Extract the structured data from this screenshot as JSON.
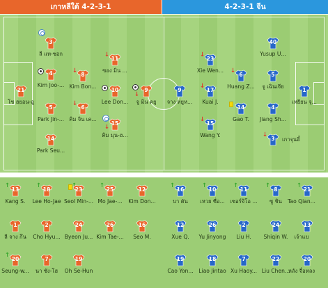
{
  "header": {
    "home_label": "เกาหลีใต้ 4-2-3-1",
    "away_label": "4-2-3-1 จีน"
  },
  "colors": {
    "home": "#e8662b",
    "away": "#2b97dd",
    "pitch": "#a6d47f",
    "bench": "#9ccd75"
  },
  "home_lineup": [
    {
      "num": "21",
      "name": "โช ฮยอน-อู"
    },
    {
      "num": "3",
      "name": "ลี แท-ซอก"
    },
    {
      "num": "4",
      "name": "Kim Joo-..."
    },
    {
      "num": "5",
      "name": "Park Jin-..."
    },
    {
      "num": "14",
      "name": "Park Seu..."
    },
    {
      "num": "8",
      "name": "Kim Bon..."
    },
    {
      "num": "6",
      "name": "คิม จิน เค..."
    },
    {
      "num": "11",
      "name": "ซอง มิน ..."
    },
    {
      "num": "10",
      "name": "Lee Don..."
    },
    {
      "num": "15",
      "name": "คิม มุน-ฮ..."
    },
    {
      "num": "9",
      "name": "จู มิน คยู"
    }
  ],
  "away_lineup": [
    {
      "num": "9",
      "name": "จาง หยูห..."
    },
    {
      "num": "23",
      "name": "Xie Wen..."
    },
    {
      "num": "17",
      "name": "Kuai J."
    },
    {
      "num": "15",
      "name": "Wang Y."
    },
    {
      "num": "6",
      "name": "Huang Z..."
    },
    {
      "num": "14",
      "name": "Gao T."
    },
    {
      "num": "40",
      "name": "Yusup U..."
    },
    {
      "num": "5",
      "name": "จู เฉินเจีย"
    },
    {
      "num": "4",
      "name": "Jiang Sh..."
    },
    {
      "num": "3",
      "name": "เกาจุนอี้"
    },
    {
      "num": "1",
      "name": "เหยียน จุ..."
    }
  ],
  "home_bench": [
    {
      "num": "13",
      "name": "Kang S."
    },
    {
      "num": "18",
      "name": "Lee Ho-Jae"
    },
    {
      "num": "23",
      "name": "Seol Min-..."
    },
    {
      "num": "25",
      "name": "Mo Jae-..."
    },
    {
      "num": "12",
      "name": "Kim Don..."
    },
    {
      "num": "1",
      "name": "ลี จาง กึน"
    },
    {
      "num": "2",
      "name": "Cho Hyu..."
    },
    {
      "num": "24",
      "name": "Byeon Ju..."
    },
    {
      "num": "26",
      "name": "Kim Tae-..."
    },
    {
      "num": "16",
      "name": "Seo M."
    },
    {
      "num": "20",
      "name": "Seung-w..."
    },
    {
      "num": "7",
      "name": "นา ซัง-โฮ"
    },
    {
      "num": "19",
      "name": "Oh Se-Hun"
    }
  ],
  "away_bench": [
    {
      "num": "16",
      "name": "บา ตัน"
    },
    {
      "num": "10",
      "name": "เหวย ซื่อ..."
    },
    {
      "num": "11",
      "name": "เซอร์จิโอ ..."
    },
    {
      "num": "8",
      "name": "ซู ชิน"
    },
    {
      "num": "21",
      "name": "Tao Qian..."
    },
    {
      "num": "12",
      "name": "Xue Q."
    },
    {
      "num": "26",
      "name": "Yu Jinyong"
    },
    {
      "num": "2",
      "name": "Liu H."
    },
    {
      "num": "24",
      "name": "Shiqin W."
    },
    {
      "num": "13",
      "name": "เจ้าแบ"
    },
    {
      "num": "19",
      "name": "Cao Yon..."
    },
    {
      "num": "18",
      "name": "Liao Jintao"
    },
    {
      "num": "7",
      "name": "Xu Haoy..."
    },
    {
      "num": "22",
      "name": "Liu Chen..."
    },
    {
      "num": "20",
      "name": "หลัง จื่อหลง"
    }
  ]
}
